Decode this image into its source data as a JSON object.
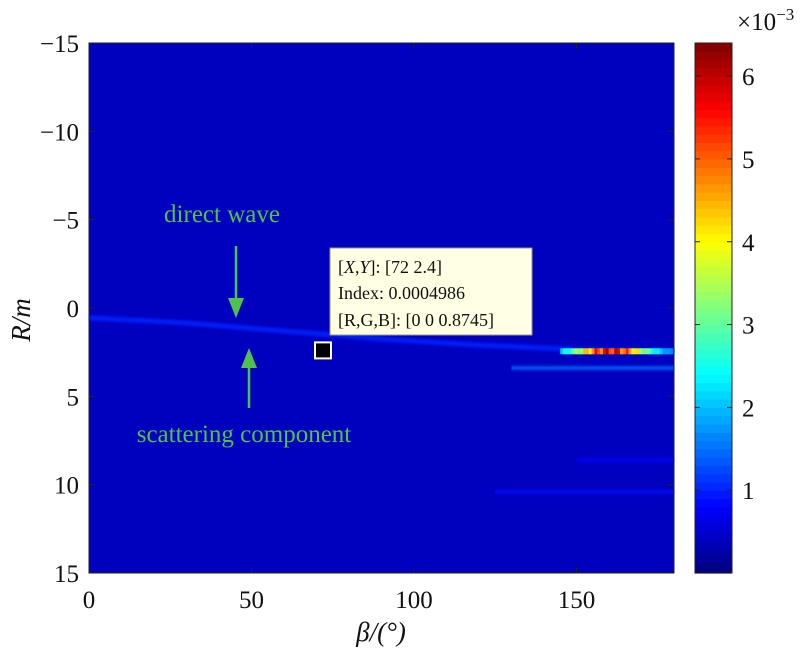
{
  "chart_data": {
    "type": "heatmap",
    "xlabel": "β/(°)",
    "ylabel": "R/m",
    "xlim": [
      0,
      180
    ],
    "ylim": [
      -15,
      15
    ],
    "y_reversed": true,
    "x_ticks": [
      0,
      50,
      100,
      150
    ],
    "y_ticks": [
      -15,
      -10,
      -5,
      0,
      5,
      10,
      15
    ],
    "colorbar": {
      "scale_label": "×10",
      "scale_exponent": "−3",
      "range": [
        0,
        6.4
      ],
      "ticks": [
        1,
        2,
        3,
        4,
        5,
        6
      ],
      "colormap": "jet"
    },
    "background_value": 0.4,
    "features": [
      {
        "name": "direct-wave",
        "points": [
          [
            0,
            0.55
          ],
          [
            30,
            0.85
          ],
          [
            60,
            1.3
          ],
          [
            90,
            1.75
          ],
          [
            120,
            2.1
          ],
          [
            150,
            2.35
          ],
          [
            180,
            2.45
          ]
        ],
        "value": 1.0
      },
      {
        "name": "scattering-component",
        "points": [
          [
            0,
            2.4
          ],
          [
            100,
            2.4
          ],
          [
            180,
            2.4
          ]
        ],
        "value": 1.2
      },
      {
        "name": "scattering-peak",
        "x_range": [
          145,
          180
        ],
        "y": 2.45,
        "peak_value": 6.3,
        "peak_x": 160
      },
      {
        "name": "weak-streak",
        "x_range": [
          130,
          180
        ],
        "y": 3.4,
        "value": 1.5
      },
      {
        "name": "weak-streak",
        "x_range": [
          125,
          180
        ],
        "y": 10.4,
        "value": 0.9
      },
      {
        "name": "weak-streak",
        "x_range": [
          150,
          180
        ],
        "y": 8.6,
        "value": 0.8
      }
    ],
    "annotations": [
      {
        "text": "direct wave",
        "arrow": "down"
      },
      {
        "text": "scattering component",
        "arrow": "up"
      }
    ],
    "datatip": {
      "x": 72,
      "y": 2.4,
      "line1_label": "[X,Y]: ",
      "line1_value": "[72 2.4]",
      "line2": "Index: 0.0004986",
      "line3": "[R,G,B]: [0 0 0.8745]"
    }
  },
  "colors": {
    "annotation": "#4ec24a",
    "tooltip_bg": "#ffffe3"
  }
}
